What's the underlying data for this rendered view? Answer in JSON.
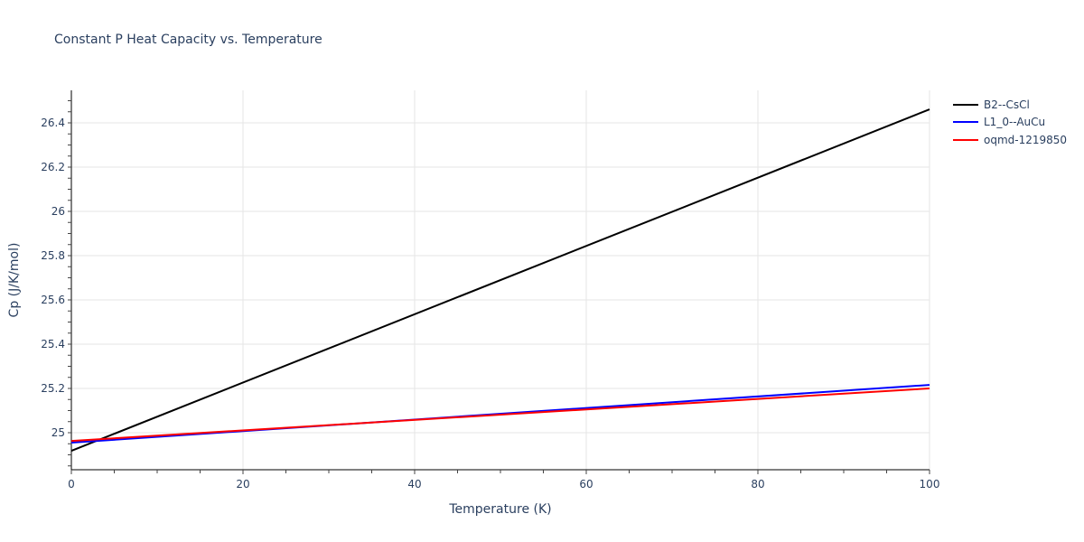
{
  "chart_data": {
    "type": "line",
    "title": "Constant P Heat Capacity vs. Temperature",
    "xlabel": "Temperature (K)",
    "ylabel": "Cp (J/K/mol)",
    "xlim": [
      0,
      100
    ],
    "ylim": [
      24.83,
      26.54
    ],
    "x_ticks": [
      "0",
      "20",
      "40",
      "60",
      "80",
      "100"
    ],
    "y_ticks": [
      "25",
      "25.2",
      "25.4",
      "25.6",
      "25.8",
      "26",
      "26.2",
      "26.4"
    ],
    "grid": true,
    "legend_position": "right",
    "series": [
      {
        "name": "B2--CsCl",
        "color": "#000000",
        "x": [
          0,
          100
        ],
        "values": [
          24.918,
          26.461
        ]
      },
      {
        "name": "L1_0--AuCu",
        "color": "#0000ff",
        "x": [
          0,
          100
        ],
        "values": [
          24.955,
          25.216
        ]
      },
      {
        "name": "oqmd-1219850",
        "color": "#ff0000",
        "x": [
          0,
          100
        ],
        "values": [
          24.963,
          25.2
        ]
      }
    ]
  }
}
